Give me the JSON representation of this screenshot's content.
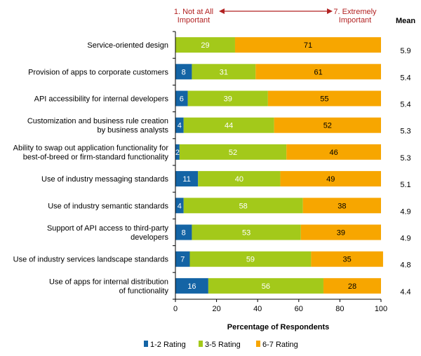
{
  "chart_data": {
    "type": "bar",
    "orientation": "horizontal",
    "stacked": true,
    "categories": [
      [
        "Service-oriented design"
      ],
      [
        "Provision of apps to corporate customers"
      ],
      [
        "API accessibility for internal developers"
      ],
      [
        "Customization and business rule creation",
        "by business analysts"
      ],
      [
        "Ability to swap out application functionality for",
        "best-of-breed or firm-standard functionality"
      ],
      [
        "Use of industry messaging standards"
      ],
      [
        "Use of industry semantic standards"
      ],
      [
        "Support of API access to third-party",
        "developers"
      ],
      [
        "Use of industry services landscape standards"
      ],
      [
        "Use of apps for internal distribution",
        "of functionality"
      ]
    ],
    "series": [
      {
        "name": "1-2 Rating",
        "color": "#1464a5",
        "values": [
          0,
          8,
          6,
          4,
          2,
          11,
          4,
          8,
          7,
          16
        ]
      },
      {
        "name": "3-5 Rating",
        "color": "#a3c91a",
        "values": [
          29,
          31,
          39,
          44,
          52,
          40,
          58,
          53,
          59,
          56
        ]
      },
      {
        "name": "6-7 Rating",
        "color": "#f7a600",
        "values": [
          71,
          61,
          55,
          52,
          46,
          49,
          38,
          39,
          35,
          28
        ]
      }
    ],
    "means": [
      "5.9",
      "5.4",
      "5.4",
      "5.3",
      "5.3",
      "5.1",
      "4.9",
      "4.9",
      "4.8",
      "4.4"
    ],
    "mean_title": "Mean",
    "scale_low": [
      "1. Not at All",
      "Important"
    ],
    "scale_high": [
      "7. Extremely",
      "Important"
    ],
    "xlabel": "Percentage of Respondents",
    "xlim": [
      0,
      100
    ],
    "xticks": [
      0,
      20,
      40,
      60,
      80,
      100
    ],
    "legend_position": "bottom"
  }
}
